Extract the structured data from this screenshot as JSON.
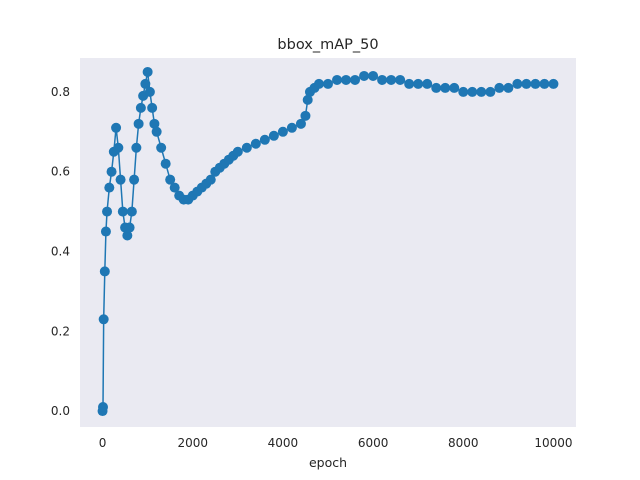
{
  "chart_data": {
    "type": "line",
    "title": "bbox_mAP_50",
    "xlabel": "epoch",
    "ylabel": "",
    "xlim": [
      -500,
      10500
    ],
    "ylim": [
      -0.04,
      0.885
    ],
    "xticks": [
      0,
      2000,
      4000,
      6000,
      8000,
      10000
    ],
    "yticks": [
      0.0,
      0.2,
      0.4,
      0.6,
      0.8
    ],
    "xtick_labels": [
      "0",
      "2000",
      "4000",
      "6000",
      "8000",
      "10000"
    ],
    "ytick_labels": [
      "0.0",
      "0.2",
      "0.4",
      "0.6",
      "0.8"
    ],
    "grid": false,
    "legend": "none",
    "series": [
      {
        "color": "#1f77b4",
        "marker": "circle",
        "x": [
          0,
          10,
          25,
          50,
          75,
          100,
          150,
          200,
          250,
          300,
          350,
          400,
          450,
          500,
          550,
          600,
          650,
          700,
          750,
          800,
          850,
          900,
          950,
          1000,
          1050,
          1100,
          1150,
          1200,
          1300,
          1400,
          1500,
          1600,
          1700,
          1800,
          1900,
          2000,
          2100,
          2200,
          2300,
          2400,
          2500,
          2600,
          2700,
          2800,
          2900,
          3000,
          3200,
          3400,
          3600,
          3800,
          4000,
          4200,
          4400,
          4500,
          4550,
          4600,
          4700,
          4800,
          5000,
          5200,
          5400,
          5600,
          5800,
          6000,
          6200,
          6400,
          6600,
          6800,
          7000,
          7200,
          7400,
          7600,
          7800,
          8000,
          8200,
          8400,
          8600,
          8800,
          9000,
          9200,
          9400,
          9600,
          9800,
          10000
        ],
        "y": [
          0.0,
          0.01,
          0.23,
          0.35,
          0.45,
          0.5,
          0.56,
          0.6,
          0.65,
          0.71,
          0.66,
          0.58,
          0.5,
          0.46,
          0.44,
          0.46,
          0.5,
          0.58,
          0.66,
          0.72,
          0.76,
          0.79,
          0.82,
          0.85,
          0.8,
          0.76,
          0.72,
          0.7,
          0.66,
          0.62,
          0.58,
          0.56,
          0.54,
          0.53,
          0.53,
          0.54,
          0.55,
          0.56,
          0.57,
          0.58,
          0.6,
          0.61,
          0.62,
          0.63,
          0.64,
          0.65,
          0.66,
          0.67,
          0.68,
          0.69,
          0.7,
          0.71,
          0.72,
          0.74,
          0.78,
          0.8,
          0.81,
          0.82,
          0.82,
          0.83,
          0.83,
          0.83,
          0.84,
          0.84,
          0.83,
          0.83,
          0.83,
          0.82,
          0.82,
          0.82,
          0.81,
          0.81,
          0.81,
          0.8,
          0.8,
          0.8,
          0.8,
          0.81,
          0.81,
          0.82,
          0.82,
          0.82,
          0.82,
          0.82
        ]
      }
    ]
  }
}
